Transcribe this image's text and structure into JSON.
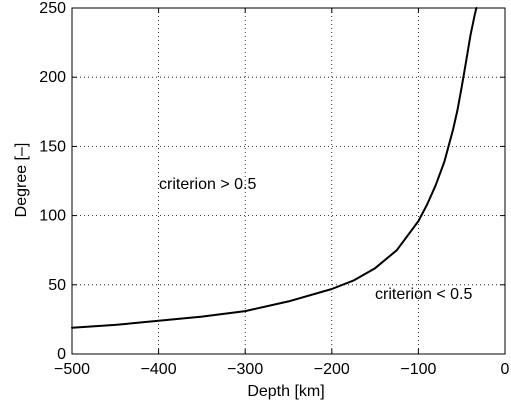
{
  "chart_data": {
    "type": "line",
    "title": "",
    "xlabel": "Depth [km]",
    "ylabel": "Degree [–]",
    "xlim": [
      -500,
      0
    ],
    "ylim": [
      0,
      250
    ],
    "xticks": [
      -500,
      -400,
      -300,
      -200,
      -100,
      0
    ],
    "yticks": [
      0,
      50,
      100,
      150,
      200,
      250
    ],
    "xtick_labels": [
      "−500",
      "−400",
      "−300",
      "−200",
      "−100",
      "0"
    ],
    "ytick_labels": [
      "0",
      "50",
      "100",
      "150",
      "200",
      "250"
    ],
    "grid": true,
    "grid_style": "dotted",
    "legend": "none",
    "line_color": "#000000",
    "series": [
      {
        "x": [
          -500,
          -450,
          -400,
          -350,
          -300,
          -250,
          -200,
          -175,
          -150,
          -125,
          -100,
          -90,
          -80,
          -70,
          -60,
          -55,
          -50,
          -45,
          -40,
          -35,
          -33
        ],
        "y": [
          19,
          21,
          24,
          27,
          31,
          38,
          47,
          53,
          62,
          75,
          96,
          108,
          122,
          139,
          162,
          176,
          193,
          211,
          230,
          245,
          250
        ]
      }
    ],
    "annotations": [
      {
        "text": "criterion > 0.5",
        "region": "upper-left of curve"
      },
      {
        "text": "criterion < 0.5",
        "region": "lower-right of curve"
      }
    ]
  }
}
